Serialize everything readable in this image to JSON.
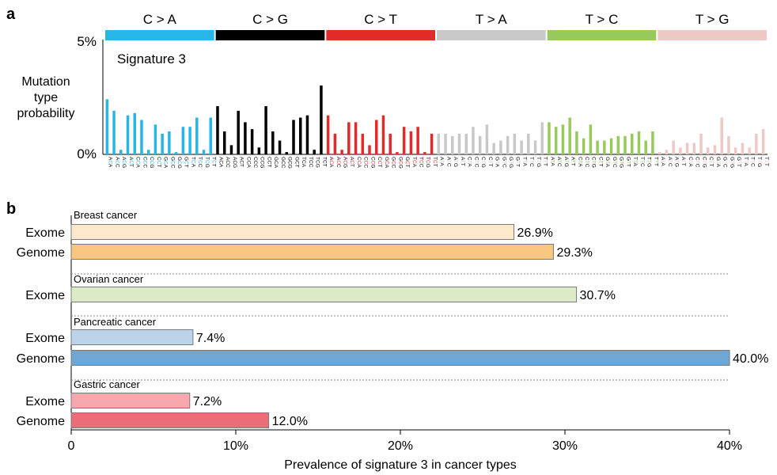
{
  "panel_a": {
    "label": "a",
    "signature_label": "Signature 3",
    "ylabel_lines": [
      "Mutation",
      "type",
      "probability"
    ],
    "y_top_label": "5%",
    "y_bottom_label": "0%",
    "groups": [
      {
        "name": "C > A",
        "color": "#27b6e6",
        "ref": "C",
        "alt": "A"
      },
      {
        "name": "C > G",
        "color": "#000000",
        "ref": "C",
        "alt": "G"
      },
      {
        "name": "C > T",
        "color": "#e22a2a",
        "ref": "C",
        "alt": "T"
      },
      {
        "name": "T > A",
        "color": "#c8c8c8",
        "ref": "T",
        "alt": "A"
      },
      {
        "name": "T > C",
        "color": "#98ca5b",
        "ref": "T",
        "alt": "C"
      },
      {
        "name": "T > G",
        "color": "#edc8c5",
        "ref": "T",
        "alt": "G"
      }
    ]
  },
  "panel_b": {
    "label": "b",
    "xlabel": "Prevalence of signature 3 in cancer types",
    "ticks": [
      "0",
      "10%",
      "20%",
      "30%",
      "40%"
    ],
    "tick_values": [
      0,
      10,
      20,
      30,
      40
    ],
    "groups": [
      {
        "name": "Breast cancer",
        "bars": [
          {
            "label": "Exome",
            "value": 26.9,
            "text": "26.9%",
            "color": "#fde8cb"
          },
          {
            "label": "Genome",
            "value": 29.3,
            "text": "29.3%",
            "color": "#f8c67f"
          }
        ]
      },
      {
        "name": "Ovarian cancer",
        "bars": [
          {
            "label": "Exome",
            "value": 30.7,
            "text": "30.7%",
            "color": "#dcebc6"
          }
        ]
      },
      {
        "name": "Pancreatic cancer",
        "bars": [
          {
            "label": "Exome",
            "value": 7.4,
            "text": "7.4%",
            "color": "#bcd4ea"
          },
          {
            "label": "Genome",
            "value": 40.0,
            "text": "40.0%",
            "color": "#6ea6d6"
          }
        ]
      },
      {
        "name": "Gastric cancer",
        "bars": [
          {
            "label": "Exome",
            "value": 7.2,
            "text": "7.2%",
            "color": "#f7a8ae"
          },
          {
            "label": "Genome",
            "value": 12.0,
            "text": "12.0%",
            "color": "#eb6e76"
          }
        ]
      }
    ]
  },
  "chart_data": [
    {
      "type": "bar",
      "title": "Signature 3",
      "ylabel": "Mutation type probability",
      "ylim": [
        0,
        5
      ],
      "unit": "%",
      "categories": [
        "A[C>A]A",
        "A[C>A]C",
        "A[C>A]G",
        "A[C>A]T",
        "C[C>A]A",
        "C[C>A]C",
        "C[C>A]G",
        "C[C>A]T",
        "G[C>A]A",
        "G[C>A]C",
        "G[C>A]G",
        "G[C>A]T",
        "T[C>A]A",
        "T[C>A]C",
        "T[C>A]G",
        "T[C>A]T",
        "A[C>G]A",
        "A[C>G]C",
        "A[C>G]G",
        "A[C>G]T",
        "C[C>G]A",
        "C[C>G]C",
        "C[C>G]G",
        "C[C>G]T",
        "G[C>G]A",
        "G[C>G]C",
        "G[C>G]G",
        "G[C>G]T",
        "T[C>G]A",
        "T[C>G]C",
        "T[C>G]G",
        "T[C>G]T",
        "A[C>T]A",
        "A[C>T]C",
        "A[C>T]G",
        "A[C>T]T",
        "C[C>T]A",
        "C[C>T]C",
        "C[C>T]G",
        "C[C>T]T",
        "G[C>T]A",
        "G[C>T]C",
        "G[C>T]G",
        "G[C>T]T",
        "T[C>T]A",
        "T[C>T]C",
        "T[C>T]G",
        "T[C>T]T",
        "A[T>A]A",
        "A[T>A]C",
        "A[T>A]G",
        "A[T>A]T",
        "C[T>A]A",
        "C[T>A]C",
        "C[T>A]G",
        "C[T>A]T",
        "G[T>A]A",
        "G[T>A]C",
        "G[T>A]G",
        "G[T>A]T",
        "T[T>A]A",
        "T[T>A]C",
        "T[T>A]G",
        "T[T>A]T",
        "A[T>C]A",
        "A[T>C]C",
        "A[T>C]G",
        "A[T>C]T",
        "C[T>C]A",
        "C[T>C]C",
        "C[T>C]G",
        "C[T>C]T",
        "G[T>C]A",
        "G[T>C]C",
        "G[T>C]G",
        "G[T>C]T",
        "T[T>C]A",
        "T[T>C]C",
        "T[T>C]G",
        "T[T>C]T",
        "A[T>G]A",
        "A[T>G]C",
        "A[T>G]G",
        "A[T>G]T",
        "C[T>G]A",
        "C[T>G]C",
        "C[T>G]G",
        "C[T>G]T",
        "G[T>G]A",
        "G[T>G]C",
        "G[T>G]G",
        "G[T>G]T",
        "T[T>G]A",
        "T[T>G]C",
        "T[T>G]G",
        "T[T>G]T"
      ],
      "values": [
        2.4,
        1.9,
        0.2,
        1.7,
        1.8,
        1.5,
        0.2,
        1.3,
        0.9,
        1.0,
        0.1,
        1.2,
        1.2,
        1.6,
        0.2,
        1.6,
        2.1,
        1.0,
        0.4,
        1.9,
        1.4,
        1.1,
        0.3,
        2.1,
        1.0,
        0.6,
        0.1,
        1.5,
        1.6,
        1.7,
        0.2,
        3.0,
        1.7,
        0.9,
        0.2,
        1.4,
        1.4,
        0.9,
        0.4,
        1.5,
        1.7,
        0.9,
        0.1,
        1.2,
        1.0,
        1.2,
        0.1,
        0.9,
        0.9,
        0.9,
        0.8,
        0.9,
        0.9,
        1.2,
        0.8,
        1.3,
        0.5,
        0.6,
        0.8,
        0.9,
        0.6,
        0.9,
        0.6,
        1.4,
        1.4,
        1.2,
        1.3,
        1.6,
        1.0,
        0.7,
        1.3,
        0.6,
        0.6,
        0.7,
        0.8,
        0.8,
        0.9,
        1.0,
        0.6,
        1.0,
        0.1,
        0.2,
        0.6,
        0.3,
        0.5,
        0.5,
        0.9,
        0.3,
        0.4,
        1.6,
        0.8,
        0.3,
        0.5,
        0.3,
        0.9,
        1.1
      ]
    },
    {
      "type": "bar",
      "orientation": "horizontal",
      "xlabel": "Prevalence of signature 3 in cancer types",
      "xlim": [
        0,
        40
      ],
      "unit": "%",
      "categories": [
        "Breast cancer Exome",
        "Breast cancer Genome",
        "Ovarian cancer Exome",
        "Pancreatic cancer Exome",
        "Pancreatic cancer Genome",
        "Gastric cancer Exome",
        "Gastric cancer Genome"
      ],
      "values": [
        26.9,
        29.3,
        30.7,
        7.4,
        40.0,
        7.2,
        12.0
      ]
    }
  ]
}
